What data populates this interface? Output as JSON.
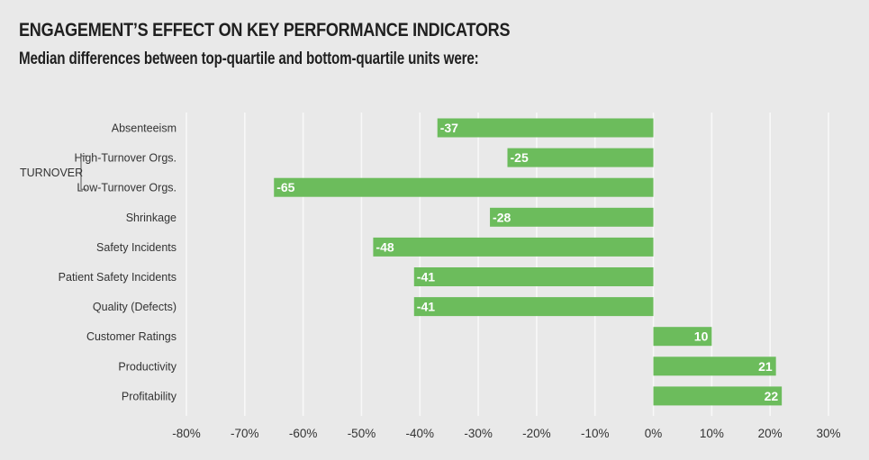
{
  "chart_data": {
    "type": "bar",
    "orientation": "horizontal",
    "title": "ENGAGEMENT’S EFFECT ON KEY PERFORMANCE INDICATORS",
    "subtitle": "Median differences between top-quartile and bottom-quartile units were:",
    "categories": [
      "Absenteeism",
      "High-Turnover Orgs.",
      "Low-Turnover Orgs.",
      "Shrinkage",
      "Safety Incidents",
      "Patient Safety Incidents",
      "Quality (Defects)",
      "Customer Ratings",
      "Productivity",
      "Profitability"
    ],
    "values": [
      -37,
      -25,
      -65,
      -28,
      -48,
      -41,
      -41,
      10,
      21,
      22
    ],
    "value_labels": [
      "-37",
      "-25",
      "-65",
      "-28",
      "-48",
      "-41",
      "-41",
      "10",
      "21",
      "22"
    ],
    "group_label": "TURNOVER",
    "xlim": [
      -80,
      30
    ],
    "xticks": [
      -80,
      -70,
      -60,
      -50,
      -40,
      -30,
      -20,
      -10,
      0,
      10,
      20,
      30
    ],
    "xtick_labels": [
      "-80%",
      "-70%",
      "-60%",
      "-50%",
      "-40%",
      "-30%",
      "-20%",
      "-10%",
      "0%",
      "10%",
      "20%",
      "30%"
    ],
    "grid": true,
    "bar_color": "#6cbc5c",
    "grid_color": "#f8f8f8",
    "background": "#e9e9e9"
  }
}
